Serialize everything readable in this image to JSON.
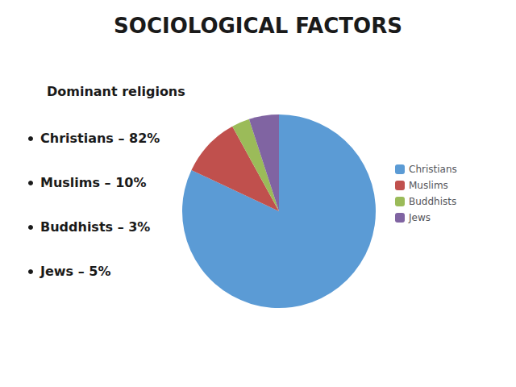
{
  "chart_data": {
    "type": "pie",
    "title": "SOCIOLOGICAL FACTORS",
    "subtitle": "Dominant religions",
    "annotations": [
      "Christians – 82%",
      "Muslims – 10%",
      "Buddhists – 3%",
      "Jews – 5%"
    ],
    "categories": [
      "Christians",
      "Muslims",
      "Buddhists",
      "Jews"
    ],
    "values": [
      82,
      10,
      3,
      5
    ],
    "colors": [
      "#5B9BD5",
      "#C0504D",
      "#9BBB59",
      "#8064A2"
    ],
    "legend": "right"
  }
}
